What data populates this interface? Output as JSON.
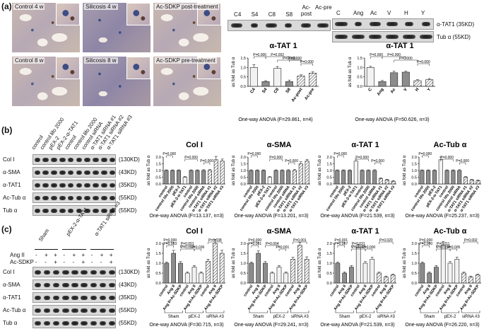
{
  "panel_labels": {
    "a": "(a)",
    "b": "(b)",
    "c": "(c)"
  },
  "micrographs": [
    {
      "label": "Control 4 w",
      "dense": false
    },
    {
      "label": "Silicosis 4 w",
      "dense": true
    },
    {
      "label": "Ac-SDKP post-treatment",
      "dense": false
    },
    {
      "label": "Control 8 w",
      "dense": false
    },
    {
      "label": "Silicosis 8 w",
      "dense": true
    },
    {
      "label": "Ac-SDKP pre-treatment",
      "dense": false
    }
  ],
  "blot_a1": {
    "lanes": [
      "C4",
      "S4",
      "C8",
      "S8",
      "Ac-post",
      "Ac-pre"
    ]
  },
  "blot_a2": {
    "lanes": [
      "C",
      "Ang",
      "Ac",
      "V",
      "H",
      "Y"
    ],
    "bands": [
      "α-TAT1 (35KD)",
      "Tub α (55KD)"
    ]
  },
  "blot_b": {
    "lanes": [
      "control",
      "control lifo 2000",
      "pEX-2",
      "pEX-2-α-TAT1",
      "control",
      "control lifo 2000",
      "control siRNA",
      "α-TAT1 siRNA #1",
      "α-TAT1 siRNA #2",
      "α-TAT1 siRNA #3"
    ],
    "rows": [
      "Col I",
      "α-SMA",
      "α-TAT1",
      "Ac-Tub α",
      "Tub α"
    ],
    "kd": [
      "(130KD)",
      "(43KD)",
      "(35KD)",
      "(55KD)",
      "(55KD)"
    ]
  },
  "blot_c": {
    "groups": [
      "Sham",
      "pEX-2-α-TAT1",
      "α-TAT1 siRNA #3"
    ],
    "ang_label": "Ang II",
    "ac_label": "Ac-SDKP",
    "ang_signs": [
      "-",
      "+",
      "+",
      "-",
      "+",
      "+",
      "-",
      "+",
      "+"
    ],
    "ac_signs": [
      "-",
      "-",
      "+",
      "-",
      "-",
      "+",
      "-",
      "-",
      "+"
    ],
    "rows": [
      "Col I",
      "α-SMA",
      "α-TAT1",
      "Ac-Tub α",
      "Tub α"
    ],
    "kd": [
      "(130KD)",
      "(43KD)",
      "(35KD)",
      "(55KD)",
      "(55KD)"
    ]
  },
  "chart_data": [
    {
      "id": "a1",
      "type": "bar",
      "title": "α-TAT 1",
      "ylabel": "as fold as Tub α",
      "ylim": [
        0,
        1.5
      ],
      "yticks": [
        "0.0",
        "0.5",
        "1.0",
        "1.5"
      ],
      "categories": [
        "C4",
        "S4",
        "C8",
        "S8",
        "Ac-post",
        "Ac-pre"
      ],
      "values": [
        1.0,
        0.25,
        0.95,
        0.25,
        0.55,
        0.7
      ],
      "errors": [
        0.15,
        0.05,
        0.1,
        0.08,
        0.06,
        0.07
      ],
      "styles": [
        "light",
        "dark",
        "light",
        "dark",
        "hatch",
        "hatch"
      ],
      "pvalues": [
        "P=0.000",
        "P=0.000",
        "P=0.000",
        "P=0.002",
        "P=0.000"
      ],
      "anova": "One-way ANOVA (F=29.861, n=4)"
    },
    {
      "id": "a2",
      "type": "bar",
      "title": "α-TAT 1",
      "ylabel": "as fold as Tub α",
      "ylim": [
        0,
        1.5
      ],
      "yticks": [
        "0.0",
        "0.5",
        "1.0",
        "1.5"
      ],
      "categories": [
        "C",
        "Ang",
        "Ac",
        "V",
        "H",
        "Y"
      ],
      "values": [
        1.0,
        0.25,
        0.72,
        0.75,
        0.3,
        0.35
      ],
      "errors": [
        0.06,
        0.06,
        0.08,
        0.05,
        0.05,
        0.06
      ],
      "styles": [
        "light",
        "dark",
        "dark",
        "dark",
        "hatch",
        "hatch"
      ],
      "pvalues": [
        "P=0.000",
        "P=0.000",
        "P=0.000",
        "P=0.000"
      ],
      "anova": "One-way ANOVA (F=50.626, n=3)"
    },
    {
      "id": "b1",
      "type": "bar",
      "title": "Col I",
      "ylabel": "as fold as Tub α",
      "ylim": [
        0,
        2.0
      ],
      "yticks": [
        "0.0",
        "0.5",
        "1.0",
        "1.5",
        "2.0"
      ],
      "categories": [
        "control",
        "control lifo 2000",
        "pEX-2",
        "pEX-2-α-TAT1",
        "control",
        "control lifo 2000",
        "control siRNA",
        "α-TAT1 siRNA #1",
        "α-TAT1 siRNA #2",
        "α-TAT1 siRNA #3"
      ],
      "values": [
        1.0,
        1.0,
        1.0,
        0.5,
        1.0,
        1.0,
        1.0,
        1.0,
        1.8,
        1.7
      ],
      "errors": [
        0.05,
        0.05,
        0.05,
        0.06,
        0.05,
        0.05,
        0.06,
        0.08,
        0.25,
        0.15
      ],
      "styles": [
        "dark",
        "dark",
        "dark",
        "light",
        "dark",
        "dark",
        "dark",
        "hatch",
        "hatch",
        "hatch"
      ],
      "pvalues": [
        "P=0.000",
        "P=0.000",
        "P=0.000"
      ],
      "anova": "One-way ANOVA (F=13.137, n=3)"
    },
    {
      "id": "b2",
      "type": "bar",
      "title": "α-SMA",
      "ylabel": "as fold as Tub α",
      "ylim": [
        0,
        2.0
      ],
      "yticks": [
        "0.0",
        "0.5",
        "1.0",
        "1.5",
        "2.0"
      ],
      "categories": [
        "control",
        "control lifo 2000",
        "pEX-2",
        "pEX-2-α-TAT1",
        "control",
        "control lifo 2000",
        "control siRNA",
        "α-TAT1 siRNA #1",
        "α-TAT1 siRNA #2",
        "α-TAT1 siRNA #3"
      ],
      "values": [
        1.0,
        1.0,
        1.0,
        0.5,
        1.0,
        1.0,
        1.0,
        1.0,
        1.5,
        1.7
      ],
      "errors": [
        0.05,
        0.05,
        0.05,
        0.06,
        0.05,
        0.05,
        0.06,
        0.08,
        0.15,
        0.12
      ],
      "styles": [
        "dark",
        "dark",
        "dark",
        "light",
        "dark",
        "dark",
        "dark",
        "hatch",
        "hatch",
        "hatch"
      ],
      "pvalues": [
        "P=0.000",
        "P=0.000",
        "P=0.000"
      ],
      "anova": "One-way ANOVA (F=13.201, n=3)"
    },
    {
      "id": "b3",
      "type": "bar",
      "title": "α-TAT 1",
      "ylabel": "as fold as Tub α",
      "ylim": [
        0,
        2.0
      ],
      "yticks": [
        "0.0",
        "0.5",
        "1.0",
        "1.5",
        "2.0"
      ],
      "categories": [
        "control",
        "control lifo 2000",
        "pEX-2",
        "pEX-2-α-TAT1",
        "control",
        "control lifo 2000",
        "control siRNA",
        "α-TAT1 siRNA #1",
        "α-TAT1 siRNA #2",
        "α-TAT1 siRNA #3"
      ],
      "values": [
        1.0,
        1.0,
        1.0,
        1.7,
        1.0,
        1.0,
        1.0,
        0.4,
        0.3,
        0.2
      ],
      "errors": [
        0.05,
        0.05,
        0.05,
        0.15,
        0.05,
        0.05,
        0.06,
        0.05,
        0.05,
        0.05
      ],
      "styles": [
        "dark",
        "dark",
        "dark",
        "light",
        "dark",
        "dark",
        "dark",
        "hatch",
        "hatch",
        "hatch"
      ],
      "pvalues": [
        "P=0.000",
        "P=0.000",
        "P=0.000"
      ],
      "anova": "One-way ANOVA (F=21.539, n=3)"
    },
    {
      "id": "b4",
      "type": "bar",
      "title": "Ac-Tub α",
      "ylabel": "as fold as Tub α",
      "ylim": [
        0,
        2.0
      ],
      "yticks": [
        "0.0",
        "0.5",
        "1.0",
        "1.5",
        "2.0"
      ],
      "categories": [
        "control",
        "control lifo 2000",
        "pEX-2",
        "pEX-2-α-TAT1",
        "control",
        "control lifo 2000",
        "control siRNA",
        "α-TAT1 siRNA #1",
        "α-TAT1 siRNA #2",
        "α-TAT1 siRNA #3"
      ],
      "values": [
        1.0,
        1.0,
        1.0,
        1.8,
        1.0,
        1.0,
        1.0,
        0.5,
        0.3,
        0.25
      ],
      "errors": [
        0.05,
        0.05,
        0.05,
        0.2,
        0.05,
        0.05,
        0.06,
        0.05,
        0.05,
        0.05
      ],
      "styles": [
        "dark",
        "dark",
        "dark",
        "light",
        "dark",
        "dark",
        "dark",
        "hatch",
        "hatch",
        "hatch"
      ],
      "pvalues": [
        "P=0.000",
        "P=0.000",
        "P=0.000"
      ],
      "anova": "One-way ANOVA (F=25.237, n=3)"
    },
    {
      "id": "c1",
      "type": "bar",
      "title": "Col I",
      "ylabel": "as fold as Tub α",
      "ylim": [
        0,
        2.0
      ],
      "yticks": [
        "0.0",
        "0.5",
        "1.0",
        "1.5",
        "2.0"
      ],
      "categories": [
        "control",
        "Ang II",
        "Ang II+Ac-SDKP",
        "control",
        "Ang II",
        "Ang II+Ac-SDKP",
        "control",
        "Ang II",
        "Ang II+Ac-SDKP"
      ],
      "values": [
        1.0,
        1.5,
        1.0,
        0.5,
        0.8,
        0.5,
        1.1,
        2.0,
        1.5
      ],
      "errors": [
        0.06,
        0.15,
        0.08,
        0.06,
        0.08,
        0.06,
        0.1,
        0.2,
        0.15
      ],
      "styles": [
        "dark",
        "dark",
        "dark",
        "light",
        "light",
        "light",
        "hatch",
        "hatch",
        "hatch"
      ],
      "pvalues": [
        "P=0.000",
        "P=0.001",
        "P=0.036",
        "P=0.038",
        "P=0.003",
        "P=0.003"
      ],
      "groups": [
        "Sham",
        "pEX-2",
        "siRNA #3"
      ],
      "anova": "One-way ANOVA (F=30.715, n=3)"
    },
    {
      "id": "c2",
      "type": "bar",
      "title": "α-SMA",
      "ylabel": "as fold as Tub α",
      "ylim": [
        0,
        2.0
      ],
      "yticks": [
        "0.0",
        "0.5",
        "1.0",
        "1.5",
        "2.0"
      ],
      "categories": [
        "control",
        "Ang II",
        "Ang II+Ac-SDKP",
        "control",
        "Ang II",
        "Ang II+Ac-SDKP",
        "control",
        "Ang II",
        "Ang II+Ac-SDKP"
      ],
      "values": [
        1.0,
        1.5,
        1.0,
        0.5,
        0.8,
        0.5,
        1.2,
        1.9,
        1.2
      ],
      "errors": [
        0.06,
        0.12,
        0.08,
        0.06,
        0.08,
        0.06,
        0.1,
        0.15,
        0.12
      ],
      "styles": [
        "dark",
        "dark",
        "dark",
        "light",
        "light",
        "light",
        "hatch",
        "hatch",
        "hatch"
      ],
      "pvalues": [
        "P=0.000",
        "P=0.004",
        "P=0.001",
        "P=0.001",
        "P=0.001"
      ],
      "groups": [
        "Sham",
        "pEX-2",
        "siRNA #3"
      ],
      "anova": "One-way ANOVA (F=29.241, n=3)"
    },
    {
      "id": "c3",
      "type": "bar",
      "title": "α-TAT 1",
      "ylabel": "as fold as Tub α",
      "ylim": [
        0,
        2.0
      ],
      "yticks": [
        "0.0",
        "0.5",
        "1.0",
        "1.5",
        "2.0"
      ],
      "categories": [
        "control",
        "Ang II",
        "Ang II+Ac-SDKP",
        "control",
        "Ang II",
        "Ang II+Ac-SDKP",
        "control",
        "Ang II",
        "Ang II+Ac-SDKP"
      ],
      "values": [
        1.0,
        0.5,
        0.8,
        1.8,
        1.0,
        1.2,
        0.5,
        0.3,
        0.4
      ],
      "errors": [
        0.06,
        0.06,
        0.08,
        0.15,
        0.08,
        0.1,
        0.05,
        0.05,
        0.05
      ],
      "styles": [
        "dark",
        "dark",
        "dark",
        "light",
        "light",
        "light",
        "hatch",
        "hatch",
        "hatch"
      ],
      "pvalues": [
        "P=0.001",
        "P=0.031",
        "P=0.000",
        "P=0.020",
        "P=0.007",
        "P=0.043"
      ],
      "groups": [
        "Sham",
        "pEX-2",
        "siRNA #3"
      ],
      "anova": "One-way ANOVA (F=21.539, n=3)"
    },
    {
      "id": "c4",
      "type": "bar",
      "title": "Ac-Tub α",
      "ylabel": "as fold as Tub α",
      "ylim": [
        0,
        2.0
      ],
      "yticks": [
        "0.0",
        "0.5",
        "1.0",
        "1.5",
        "2.0"
      ],
      "categories": [
        "control",
        "Ang II",
        "Ang II+Ac-SDKP",
        "control",
        "Ang II",
        "Ang II+Ac-SDKP",
        "control",
        "Ang II",
        "Ang II+Ac-SDKP"
      ],
      "values": [
        1.0,
        0.5,
        0.8,
        1.9,
        1.0,
        1.2,
        0.5,
        0.3,
        0.4
      ],
      "errors": [
        0.06,
        0.06,
        0.08,
        0.2,
        0.08,
        0.1,
        0.05,
        0.05,
        0.05
      ],
      "styles": [
        "dark",
        "dark",
        "dark",
        "light",
        "light",
        "light",
        "hatch",
        "hatch",
        "hatch"
      ],
      "pvalues": [
        "P=0.000",
        "P=0.011",
        "P=0.005",
        "P=0.002",
        "P=0.000",
        "P=0.034"
      ],
      "groups": [
        "Sham",
        "pEX-2",
        "siRNA #3"
      ],
      "anova": "One-way ANOVA (F=26.220, n=3)"
    }
  ]
}
